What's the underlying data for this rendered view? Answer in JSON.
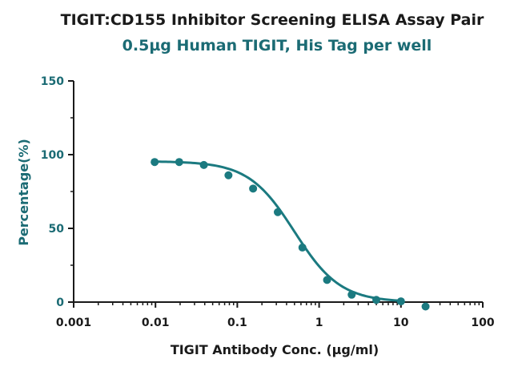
{
  "chart_data": {
    "type": "scatter",
    "title": "TIGIT:CD155 Inhibitor Screening ELISA Assay Pair",
    "subtitle": "0.5µg Human TIGIT, His Tag per well",
    "xlabel": "TIGIT Antibody Conc. (µg/ml)",
    "ylabel": "Percentage(%)",
    "xscale": "log",
    "xlim": [
      0.001,
      100
    ],
    "ylim": [
      0,
      150
    ],
    "xticks": [
      "0.001",
      "0.01",
      "0.1",
      "1",
      "10",
      "100"
    ],
    "yticks": [
      "0",
      "50",
      "100",
      "150"
    ],
    "grid": false,
    "color": "#1b7a80",
    "series": [
      {
        "x": [
          0.00977,
          0.0195,
          0.039,
          0.078,
          0.156,
          0.3125,
          0.625,
          1.25,
          2.5,
          5,
          10,
          20
        ],
        "y": [
          95,
          95,
          93,
          86,
          77,
          61,
          37,
          15,
          5,
          1.5,
          0.5,
          -3
        ],
        "fit": "sigmoidal"
      }
    ]
  }
}
